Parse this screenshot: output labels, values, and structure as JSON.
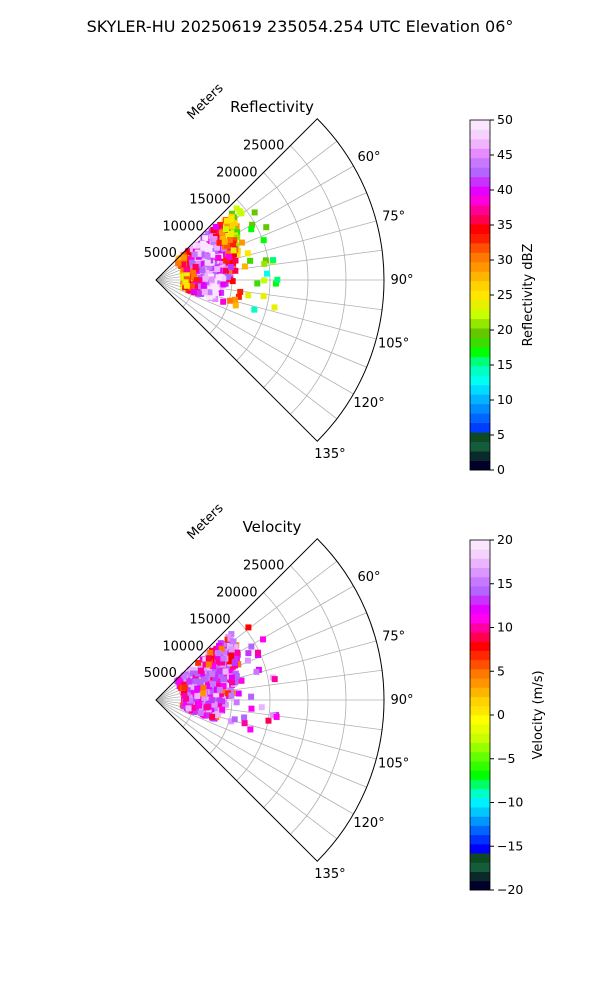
{
  "figure": {
    "suptitle": "SKYLER-HU  20250619  235054.254 UTC Elevation 06°"
  },
  "chart_data": [
    {
      "type": "heatmap",
      "subtype": "polar-sector",
      "title": "Reflectivity",
      "radial_label": "Meters",
      "radial_ticks": [
        "5000",
        "10000",
        "15000",
        "20000",
        "25000"
      ],
      "radial_values": [
        5000,
        10000,
        15000,
        20000,
        25000
      ],
      "radial_range": [
        0,
        30000
      ],
      "azimuth_ticks": [
        "60°",
        "75°",
        "90°",
        "105°",
        "120°",
        "135°"
      ],
      "azimuth_values": [
        60,
        75,
        90,
        105,
        120,
        135
      ],
      "azimuth_range": [
        45,
        135
      ],
      "grid": true,
      "colorbar": {
        "label": "Reflectivity dBZ",
        "range": [
          0,
          50
        ],
        "ticks": [
          "0",
          "5",
          "10",
          "15",
          "20",
          "25",
          "30",
          "35",
          "40",
          "45",
          "50"
        ],
        "tick_values": [
          0,
          5,
          10,
          15,
          20,
          25,
          30,
          35,
          40,
          45,
          50
        ],
        "colors": [
          "#00002a",
          "#0a2a2a",
          "#155c3a",
          "#0d4a24",
          "#003cff",
          "#0064ff",
          "#008cff",
          "#00b4ff",
          "#00dcff",
          "#00fff0",
          "#00ffc0",
          "#00ff78",
          "#00ff00",
          "#3cdc00",
          "#64c800",
          "#96e600",
          "#c8ff00",
          "#e6f000",
          "#ffe600",
          "#ffd200",
          "#ffb400",
          "#ff9600",
          "#ff7800",
          "#ff5000",
          "#ff1e00",
          "#ff0000",
          "#ff0050",
          "#ff0096",
          "#ff00dc",
          "#e600ff",
          "#c832ff",
          "#b464ff",
          "#c878ff",
          "#e68cff",
          "#f0b4ff",
          "#f5d2ff",
          "#fae6ff"
        ]
      }
    },
    {
      "type": "heatmap",
      "subtype": "polar-sector",
      "title": "Velocity",
      "radial_label": "Meters",
      "radial_ticks": [
        "5000",
        "10000",
        "15000",
        "20000",
        "25000"
      ],
      "radial_values": [
        5000,
        10000,
        15000,
        20000,
        25000
      ],
      "radial_range": [
        0,
        30000
      ],
      "azimuth_ticks": [
        "60°",
        "75°",
        "90°",
        "105°",
        "120°",
        "135°"
      ],
      "azimuth_values": [
        60,
        75,
        90,
        105,
        120,
        135
      ],
      "azimuth_range": [
        45,
        135
      ],
      "grid": true,
      "colorbar": {
        "label": "Velocity (m/s)",
        "range": [
          -20,
          20
        ],
        "ticks": [
          "−20",
          "−15",
          "−10",
          "−5",
          "0",
          "5",
          "10",
          "15",
          "20"
        ],
        "tick_values": [
          -20,
          -15,
          -10,
          -5,
          0,
          5,
          10,
          15,
          20
        ],
        "colors": [
          "#00002a",
          "#0a2a2a",
          "#155c3a",
          "#0d4a24",
          "#0000ff",
          "#0032ff",
          "#0064ff",
          "#0096ff",
          "#00c8ff",
          "#00f0ff",
          "#00ffc8",
          "#00ff64",
          "#00ff00",
          "#32ff00",
          "#64ff00",
          "#96ff00",
          "#c8ff00",
          "#e6ff00",
          "#ffff00",
          "#ffe600",
          "#ffd200",
          "#ffb400",
          "#ff9600",
          "#ff7800",
          "#ff5000",
          "#ff2800",
          "#ff0000",
          "#ff0050",
          "#ff00a0",
          "#ff00f0",
          "#e600ff",
          "#c832ff",
          "#b464ff",
          "#c878ff",
          "#dc96ff",
          "#ebb4ff",
          "#f5d2ff",
          "#fae6ff"
        ]
      }
    }
  ]
}
